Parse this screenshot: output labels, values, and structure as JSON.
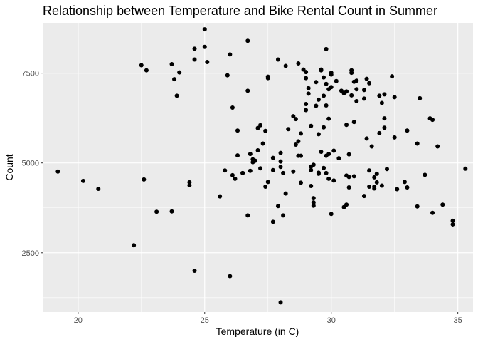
{
  "chart_data": {
    "type": "scatter",
    "title": "Relationship between Temperature and Bike Rental Count in Summer",
    "xlabel": "Temperature (in C)",
    "ylabel": "Count",
    "xlim": [
      18.6,
      35.6
    ],
    "ylim": [
      850,
      8900
    ],
    "xticks": [
      20,
      25,
      30,
      35
    ],
    "yticks": [
      2500,
      5000,
      7500
    ],
    "ytick_labels": [
      "2500",
      "5000",
      "7500"
    ],
    "xtick_labels": [
      "20",
      "25",
      "30",
      "35"
    ],
    "grid": true,
    "colors": {
      "panel": "#ebebeb",
      "grid": "#ffffff",
      "point": "#000000"
    },
    "points": [
      [
        19.2,
        4760
      ],
      [
        20.2,
        4500
      ],
      [
        20.8,
        4280
      ],
      [
        22.2,
        2710
      ],
      [
        22.5,
        7720
      ],
      [
        22.6,
        4540
      ],
      [
        22.7,
        7580
      ],
      [
        23.1,
        3640
      ],
      [
        23.7,
        3650
      ],
      [
        23.7,
        7750
      ],
      [
        23.8,
        7330
      ],
      [
        23.9,
        6870
      ],
      [
        24.0,
        7520
      ],
      [
        24.4,
        4380
      ],
      [
        24.4,
        4460
      ],
      [
        24.6,
        8180
      ],
      [
        24.6,
        7880
      ],
      [
        24.6,
        2000
      ],
      [
        25.0,
        8720
      ],
      [
        25.0,
        8230
      ],
      [
        25.1,
        7810
      ],
      [
        25.6,
        4070
      ],
      [
        25.8,
        4790
      ],
      [
        25.9,
        7440
      ],
      [
        26.0,
        8020
      ],
      [
        26.0,
        1850
      ],
      [
        26.1,
        6540
      ],
      [
        26.1,
        4660
      ],
      [
        26.2,
        4560
      ],
      [
        26.3,
        5210
      ],
      [
        26.3,
        5900
      ],
      [
        26.5,
        4720
      ],
      [
        26.5,
        4720
      ],
      [
        26.7,
        8400
      ],
      [
        26.7,
        7010
      ],
      [
        26.7,
        3540
      ],
      [
        26.8,
        4780
      ],
      [
        26.8,
        5250
      ],
      [
        26.9,
        5020
      ],
      [
        26.9,
        5100
      ],
      [
        27.0,
        5060
      ],
      [
        27.1,
        5350
      ],
      [
        27.1,
        5970
      ],
      [
        27.2,
        6050
      ],
      [
        27.2,
        4850
      ],
      [
        27.3,
        5540
      ],
      [
        27.4,
        5890
      ],
      [
        27.4,
        4340
      ],
      [
        27.5,
        7400
      ],
      [
        27.5,
        7360
      ],
      [
        27.5,
        4470
      ],
      [
        27.7,
        4800
      ],
      [
        27.7,
        5140
      ],
      [
        27.7,
        3360
      ],
      [
        27.9,
        3800
      ],
      [
        27.9,
        7880
      ],
      [
        28.0,
        5280
      ],
      [
        28.0,
        5040
      ],
      [
        28.0,
        4890
      ],
      [
        28.0,
        1120
      ],
      [
        28.1,
        4720
      ],
      [
        28.1,
        3540
      ],
      [
        28.2,
        4150
      ],
      [
        28.2,
        7700
      ],
      [
        28.3,
        5940
      ],
      [
        28.5,
        4760
      ],
      [
        28.5,
        6300
      ],
      [
        28.6,
        5510
      ],
      [
        28.6,
        6220
      ],
      [
        28.7,
        7770
      ],
      [
        28.7,
        5200
      ],
      [
        28.7,
        5600
      ],
      [
        28.8,
        5200
      ],
      [
        28.8,
        4450
      ],
      [
        28.8,
        5820
      ],
      [
        28.9,
        7600
      ],
      [
        29.0,
        7530
      ],
      [
        29.0,
        7360
      ],
      [
        29.0,
        6640
      ],
      [
        29.0,
        6470
      ],
      [
        29.1,
        6930
      ],
      [
        29.1,
        7080
      ],
      [
        29.2,
        6030
      ],
      [
        29.2,
        4900
      ],
      [
        29.2,
        4800
      ],
      [
        29.2,
        4360
      ],
      [
        29.3,
        4020
      ],
      [
        29.3,
        3900
      ],
      [
        29.3,
        4950
      ],
      [
        29.3,
        3810
      ],
      [
        29.4,
        7250
      ],
      [
        29.4,
        6590
      ],
      [
        29.5,
        6760
      ],
      [
        29.5,
        4700
      ],
      [
        29.5,
        4730
      ],
      [
        29.5,
        5800
      ],
      [
        29.6,
        7580
      ],
      [
        29.6,
        7600
      ],
      [
        29.6,
        5310
      ],
      [
        29.7,
        7380
      ],
      [
        29.7,
        6870
      ],
      [
        29.7,
        5990
      ],
      [
        29.7,
        4860
      ],
      [
        29.8,
        8170
      ],
      [
        29.8,
        7200
      ],
      [
        29.8,
        6600
      ],
      [
        29.8,
        5200
      ],
      [
        29.8,
        4720
      ],
      [
        29.9,
        7050
      ],
      [
        29.9,
        6230
      ],
      [
        29.9,
        4560
      ],
      [
        29.9,
        5250
      ],
      [
        30.0,
        3580
      ],
      [
        30.0,
        7110
      ],
      [
        30.0,
        7510
      ],
      [
        30.0,
        7460
      ],
      [
        30.1,
        5340
      ],
      [
        30.1,
        4510
      ],
      [
        30.2,
        7280
      ],
      [
        30.3,
        5130
      ],
      [
        30.4,
        7010
      ],
      [
        30.5,
        6940
      ],
      [
        30.5,
        3770
      ],
      [
        30.6,
        6990
      ],
      [
        30.6,
        4650
      ],
      [
        30.6,
        3840
      ],
      [
        30.6,
        6060
      ],
      [
        30.7,
        5240
      ],
      [
        30.7,
        4610
      ],
      [
        30.7,
        4320
      ],
      [
        30.8,
        7510
      ],
      [
        30.8,
        7580
      ],
      [
        30.8,
        6880
      ],
      [
        30.9,
        6140
      ],
      [
        30.9,
        4630
      ],
      [
        30.9,
        7260
      ],
      [
        31.0,
        7290
      ],
      [
        31.0,
        7050
      ],
      [
        31.0,
        6720
      ],
      [
        31.3,
        4080
      ],
      [
        31.3,
        6790
      ],
      [
        31.3,
        7030
      ],
      [
        31.4,
        7340
      ],
      [
        31.4,
        5680
      ],
      [
        31.5,
        7220
      ],
      [
        31.5,
        4790
      ],
      [
        31.5,
        4340
      ],
      [
        31.6,
        5460
      ],
      [
        31.7,
        4290
      ],
      [
        31.7,
        4340
      ],
      [
        31.7,
        4600
      ],
      [
        31.8,
        4460
      ],
      [
        31.8,
        4700
      ],
      [
        31.9,
        6870
      ],
      [
        31.9,
        5830
      ],
      [
        32.0,
        4370
      ],
      [
        32.0,
        6670
      ],
      [
        32.1,
        6910
      ],
      [
        32.1,
        6240
      ],
      [
        32.1,
        5980
      ],
      [
        32.2,
        4830
      ],
      [
        32.4,
        7410
      ],
      [
        32.5,
        6830
      ],
      [
        32.5,
        5710
      ],
      [
        32.6,
        4270
      ],
      [
        32.9,
        4470
      ],
      [
        33.0,
        4320
      ],
      [
        33.0,
        5900
      ],
      [
        33.4,
        3790
      ],
      [
        33.4,
        5540
      ],
      [
        33.5,
        6800
      ],
      [
        33.7,
        4670
      ],
      [
        33.9,
        6240
      ],
      [
        34.0,
        6200
      ],
      [
        34.0,
        3610
      ],
      [
        34.2,
        5460
      ],
      [
        34.4,
        3840
      ],
      [
        34.8,
        3390
      ],
      [
        34.8,
        3290
      ],
      [
        35.3,
        4840
      ]
    ]
  }
}
